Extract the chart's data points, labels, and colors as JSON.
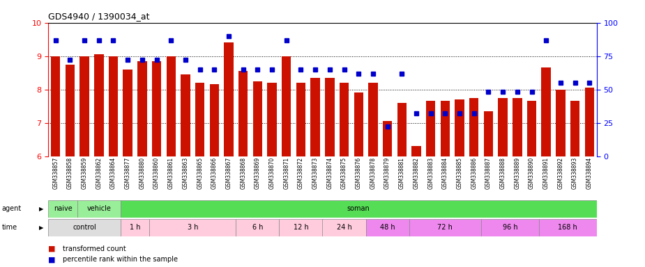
{
  "title": "GDS4940 / 1390034_at",
  "samples": [
    "GSM338857",
    "GSM338858",
    "GSM338859",
    "GSM338862",
    "GSM338864",
    "GSM338877",
    "GSM338880",
    "GSM338860",
    "GSM338861",
    "GSM338863",
    "GSM338865",
    "GSM338866",
    "GSM338867",
    "GSM338868",
    "GSM338869",
    "GSM338870",
    "GSM338871",
    "GSM338872",
    "GSM338873",
    "GSM338874",
    "GSM338875",
    "GSM338876",
    "GSM338878",
    "GSM338879",
    "GSM338881",
    "GSM338882",
    "GSM338883",
    "GSM338884",
    "GSM338885",
    "GSM338886",
    "GSM338887",
    "GSM338888",
    "GSM338889",
    "GSM338890",
    "GSM338891",
    "GSM338892",
    "GSM338893",
    "GSM338894"
  ],
  "bar_values": [
    9.0,
    8.75,
    9.0,
    9.05,
    9.0,
    8.6,
    8.85,
    8.85,
    9.0,
    8.45,
    8.2,
    8.15,
    9.4,
    8.55,
    8.25,
    8.2,
    9.0,
    8.2,
    8.35,
    8.35,
    8.2,
    7.9,
    8.2,
    7.05,
    7.6,
    6.3,
    7.65,
    7.65,
    7.7,
    7.75,
    7.35,
    7.75,
    7.75,
    7.65,
    8.65,
    8.0,
    7.65,
    8.05
  ],
  "percentile_values": [
    87,
    72,
    87,
    87,
    87,
    72,
    72,
    72,
    87,
    72,
    65,
    65,
    90,
    65,
    65,
    65,
    87,
    65,
    65,
    65,
    65,
    62,
    62,
    22,
    62,
    32,
    32,
    32,
    32,
    32,
    48,
    48,
    48,
    48,
    87,
    55,
    55,
    55
  ],
  "ylim_left": [
    6,
    10
  ],
  "ylim_right": [
    0,
    100
  ],
  "yticks_left": [
    6,
    7,
    8,
    9,
    10
  ],
  "yticks_right": [
    0,
    25,
    50,
    75,
    100
  ],
  "bar_color": "#CC1100",
  "dot_color": "#0000CC",
  "agent_groups": [
    {
      "label": "naive",
      "start": 0,
      "end": 2,
      "color": "#99EE99"
    },
    {
      "label": "vehicle",
      "start": 2,
      "end": 5,
      "color": "#99EE99"
    },
    {
      "label": "soman",
      "start": 5,
      "end": 38,
      "color": "#55DD55"
    }
  ],
  "time_groups": [
    {
      "label": "control",
      "start": 0,
      "end": 5,
      "color": "#DDDDDD"
    },
    {
      "label": "1 h",
      "start": 5,
      "end": 7,
      "color": "#FFCCDD"
    },
    {
      "label": "3 h",
      "start": 7,
      "end": 13,
      "color": "#FFCCDD"
    },
    {
      "label": "6 h",
      "start": 13,
      "end": 16,
      "color": "#FFCCDD"
    },
    {
      "label": "12 h",
      "start": 16,
      "end": 19,
      "color": "#FFCCDD"
    },
    {
      "label": "24 h",
      "start": 19,
      "end": 22,
      "color": "#FFCCDD"
    },
    {
      "label": "48 h",
      "start": 22,
      "end": 25,
      "color": "#EE88EE"
    },
    {
      "label": "72 h",
      "start": 25,
      "end": 30,
      "color": "#EE88EE"
    },
    {
      "label": "96 h",
      "start": 30,
      "end": 34,
      "color": "#EE88EE"
    },
    {
      "label": "168 h",
      "start": 34,
      "end": 38,
      "color": "#EE88EE"
    }
  ]
}
